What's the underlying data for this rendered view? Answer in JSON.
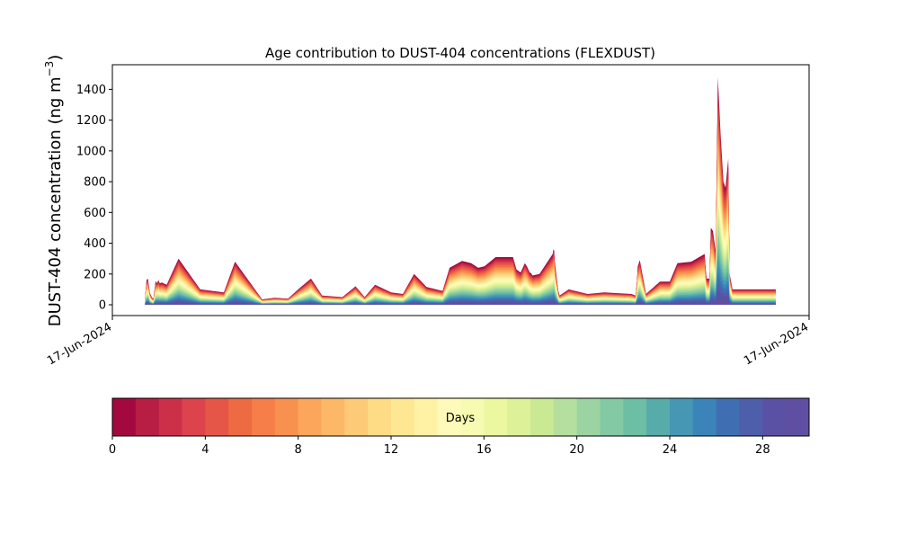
{
  "chart_data": {
    "type": "area",
    "stacked": true,
    "title": "Age contribution to DUST-404 concentrations (FLEXDUST)",
    "ylabel_main": "DUST-404 concentration (ng m",
    "ylabel_sup": "−3",
    "ylabel_close": ")",
    "xlabel": "",
    "x_tick_labels": [
      "17-Jun-2024",
      "17-Jun-2024"
    ],
    "ylim": [
      -70,
      1560
    ],
    "y_ticks": [
      0,
      200,
      400,
      600,
      800,
      1000,
      1200,
      1400
    ],
    "grid": false,
    "x": [
      0.047,
      0.049,
      0.051,
      0.054,
      0.057,
      0.059,
      0.062,
      0.064,
      0.066,
      0.068,
      0.071,
      0.078,
      0.095,
      0.126,
      0.16,
      0.176,
      0.215,
      0.233,
      0.252,
      0.268,
      0.285,
      0.301,
      0.33,
      0.349,
      0.362,
      0.377,
      0.4,
      0.417,
      0.433,
      0.451,
      0.474,
      0.484,
      0.502,
      0.515,
      0.525,
      0.534,
      0.55,
      0.575,
      0.58,
      0.586,
      0.589,
      0.592,
      0.595,
      0.599,
      0.601,
      0.603,
      0.613,
      0.632,
      0.633,
      0.634,
      0.635,
      0.64,
      0.642,
      0.655,
      0.682,
      0.706,
      0.745,
      0.748,
      0.751,
      0.753,
      0.754,
      0.757,
      0.766,
      0.786,
      0.8,
      0.811,
      0.831,
      0.85,
      0.852,
      0.853,
      0.857,
      0.859,
      0.862,
      0.866,
      0.869,
      0.873,
      0.877,
      0.88,
      0.884,
      0.886,
      0.89,
      0.894,
      0.952
    ],
    "total": [
      50,
      160,
      170,
      75,
      45,
      40,
      155,
      140,
      160,
      140,
      145,
      130,
      300,
      100,
      80,
      280,
      35,
      45,
      40,
      105,
      170,
      60,
      50,
      120,
      50,
      130,
      80,
      70,
      200,
      115,
      90,
      240,
      285,
      270,
      240,
      250,
      310,
      310,
      230,
      210,
      240,
      270,
      250,
      210,
      205,
      190,
      200,
      330,
      360,
      355,
      280,
      90,
      60,
      100,
      70,
      80,
      70,
      65,
      60,
      160,
      250,
      290,
      70,
      150,
      150,
      270,
      280,
      330,
      210,
      170,
      170,
      500,
      480,
      350,
      1480,
      1100,
      800,
      760,
      950,
      200,
      100,
      100,
      100
    ],
    "colorbar": {
      "label": "Days",
      "min": 0,
      "max": 30,
      "ticks": [
        0,
        4,
        8,
        12,
        16,
        20,
        24,
        28
      ],
      "colors": [
        "#a3093e",
        "#b81d43",
        "#cc3048",
        "#dc434d",
        "#e65648",
        "#ee6a43",
        "#f57e49",
        "#f8914f",
        "#fba65b",
        "#fdb867",
        "#fdca77",
        "#fedb85",
        "#fee792",
        "#fff2a5",
        "#fffaba",
        "#f6fbb1",
        "#ecf7a0",
        "#dcf198",
        "#cae992",
        "#b4df9e",
        "#9bd4a2",
        "#82c9a4",
        "#6cbfa5",
        "#57aba8",
        "#4597b4",
        "#3a84ba",
        "#3f6fb2",
        "#4e5eab",
        "#5a51a4",
        "#5e4fa2"
      ]
    }
  }
}
